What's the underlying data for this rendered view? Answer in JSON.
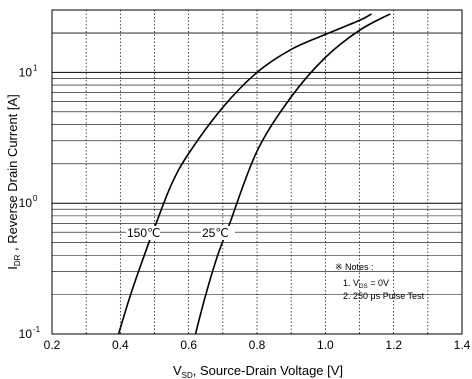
{
  "chart_data": {
    "type": "line",
    "xlabel_main": "V",
    "xlabel_sub": "SD",
    "xlabel_rest": ", Source-Drain Voltage  [V]",
    "ylabel_main": "I",
    "ylabel_sub": "DR",
    "ylabel_rest": " , Reverse Drain Current  [A]",
    "xlim": [
      0.2,
      1.4
    ],
    "ylim": [
      0.1,
      30
    ],
    "y_scale": "log",
    "grid": true,
    "x_ticks": [
      "0.2",
      "0.4",
      "0.6",
      "0.8",
      "1.0",
      "1.2",
      "1.4"
    ],
    "y_ticks": [
      {
        "mantissa": "10",
        "exp": "-1"
      },
      {
        "mantissa": "10",
        "exp": "0"
      },
      {
        "mantissa": "10",
        "exp": "1"
      }
    ],
    "series": [
      {
        "name": "150℃",
        "points": [
          [
            0.395,
            0.1
          ],
          [
            0.43,
            0.2
          ],
          [
            0.47,
            0.4
          ],
          [
            0.5,
            0.65
          ],
          [
            0.55,
            1.4
          ],
          [
            0.6,
            2.4
          ],
          [
            0.7,
            5.4
          ],
          [
            0.8,
            10
          ],
          [
            0.9,
            15
          ],
          [
            1.0,
            19.5
          ],
          [
            1.1,
            25
          ],
          [
            1.135,
            28
          ]
        ]
      },
      {
        "name": "25℃",
        "points": [
          [
            0.62,
            0.1
          ],
          [
            0.65,
            0.2
          ],
          [
            0.685,
            0.4
          ],
          [
            0.72,
            0.7
          ],
          [
            0.8,
            2.5
          ],
          [
            0.9,
            6.5
          ],
          [
            1.0,
            13
          ],
          [
            1.1,
            21
          ],
          [
            1.19,
            28
          ]
        ]
      }
    ],
    "notes": {
      "title": "※ Notes :",
      "line1_prefix": "1. V",
      "line1_sub": "GS",
      "line1_rest": " = 0V",
      "line2": "2. 250 μs Pulse Test"
    }
  }
}
